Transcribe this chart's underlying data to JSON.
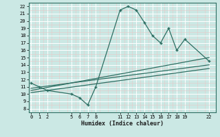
{
  "xlabel": "Humidex (Indice chaleur)",
  "bg_color": "#cbe8e4",
  "grid_color": "#ffffff",
  "grid_minor_color": "#e8d8d8",
  "line_color": "#2d6e62",
  "curve1_x": [
    0,
    1,
    2,
    5,
    6,
    7,
    8,
    11,
    12,
    13,
    14,
    15,
    16,
    17,
    18,
    19,
    22
  ],
  "curve1_y": [
    11.5,
    11.0,
    10.5,
    10.0,
    9.5,
    8.5,
    11.0,
    21.5,
    22.0,
    21.5,
    19.8,
    18.0,
    17.0,
    19.0,
    16.0,
    17.5,
    14.5
  ],
  "line1_x": [
    0,
    22
  ],
  "line1_y": [
    10.5,
    15.0
  ],
  "line2_x": [
    0,
    22
  ],
  "line2_y": [
    10.2,
    13.5
  ],
  "line3_x": [
    0,
    22
  ],
  "line3_y": [
    10.8,
    14.0
  ],
  "xlim": [
    -0.3,
    22.8
  ],
  "ylim": [
    7.8,
    22.5
  ],
  "xticks": [
    0,
    1,
    2,
    5,
    6,
    7,
    8,
    11,
    12,
    13,
    14,
    15,
    16,
    17,
    18,
    19,
    22
  ],
  "yticks": [
    8,
    9,
    10,
    11,
    12,
    13,
    14,
    15,
    16,
    17,
    18,
    19,
    20,
    21,
    22
  ]
}
